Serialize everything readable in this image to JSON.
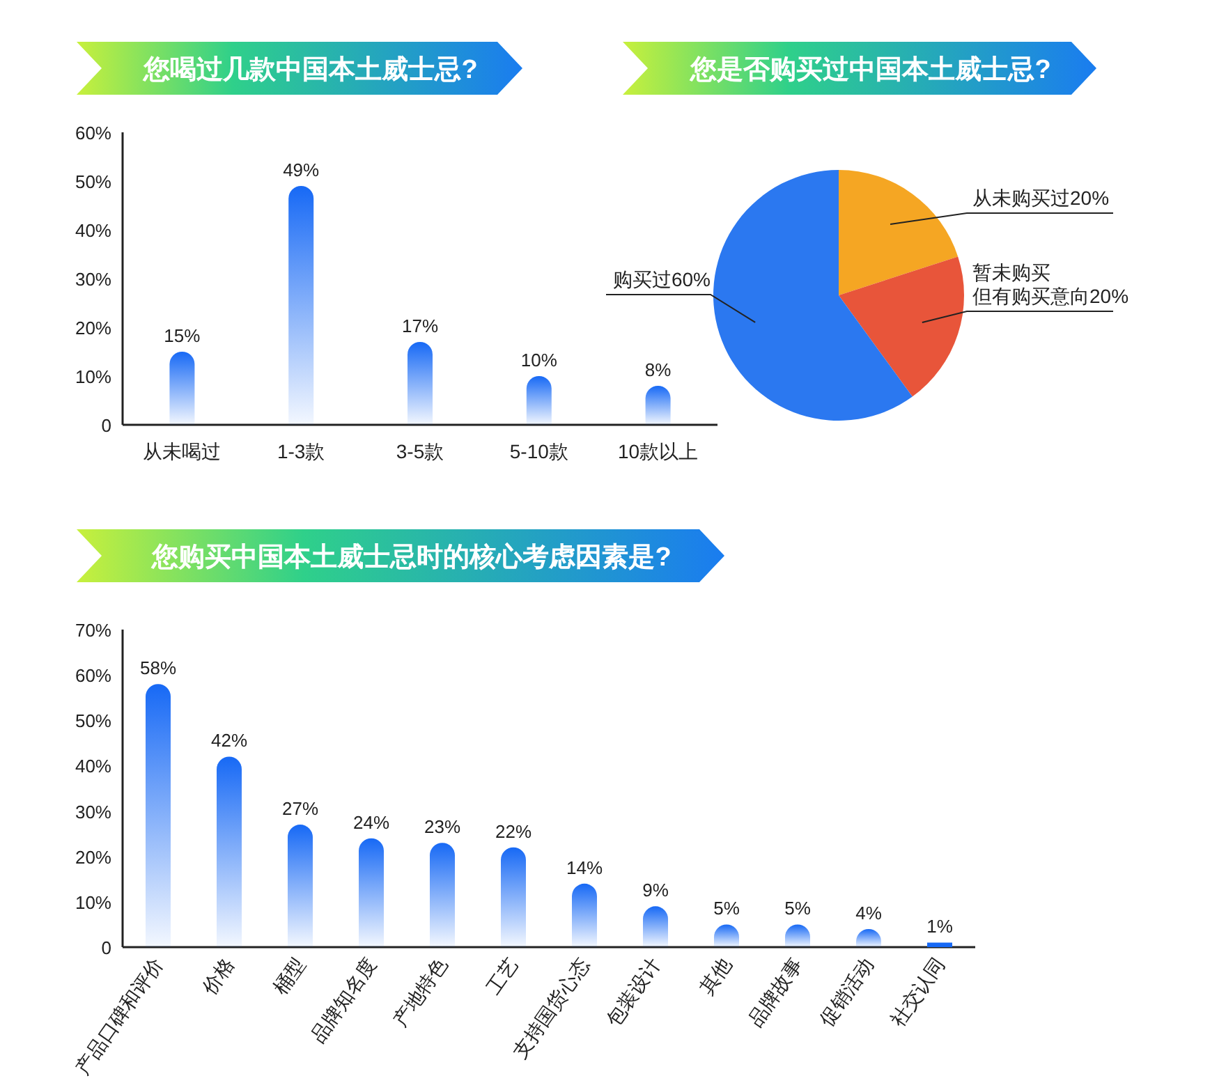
{
  "chart_data": [
    {
      "type": "bar",
      "title": "您喝过几款中国本土威士忌?",
      "categories": [
        "从未喝过",
        "1-3款",
        "3-5款",
        "5-10款",
        "10款以上"
      ],
      "values": [
        15,
        49,
        17,
        10,
        8
      ],
      "value_labels": [
        "15%",
        "49%",
        "17%",
        "10%",
        "8%"
      ],
      "color": "#1769f5",
      "ylim": [
        0,
        60
      ],
      "yticks": [
        0,
        {
          "value": 10,
          "label": "10%"
        },
        {
          "value": 20,
          "label": "20%"
        },
        {
          "value": 30,
          "label": "30%"
        },
        {
          "value": 40,
          "label": "40%"
        },
        {
          "value": 50,
          "label": "50%"
        },
        {
          "value": 60,
          "label": "60%"
        }
      ]
    },
    {
      "type": "pie",
      "title": "您是否购买过中国本土威士忌?",
      "categories": [
        "从未购买过",
        "暂未购买但有购买意向",
        "购买过"
      ],
      "values": [
        20,
        20,
        60
      ],
      "value_labels": [
        "20%",
        "20%",
        "60%"
      ],
      "colors": [
        "#f5a623",
        "#e8553a",
        "#2b78f0"
      ]
    },
    {
      "type": "bar",
      "title": "您购买中国本土威士忌时的核心考虑因素是?",
      "categories": [
        "产品口碑和评价",
        "价格",
        "桶型",
        "品牌知名度",
        "产地特色",
        "工艺",
        "支持国货心态",
        "包装设计",
        "其他",
        "品牌故事",
        "促销活动",
        "社交认同"
      ],
      "values": [
        58,
        42,
        27,
        24,
        23,
        22,
        14,
        9,
        5,
        5,
        4,
        1
      ],
      "value_labels": [
        "58%",
        "42%",
        "27%",
        "24%",
        "23%",
        "22%",
        "14%",
        "9%",
        "5%",
        "5%",
        "4%",
        "1%"
      ],
      "color": "#1769f5",
      "ylim": [
        0,
        70
      ],
      "yticks": [
        0,
        {
          "value": 10,
          "label": "10%"
        },
        {
          "value": 20,
          "label": "20%"
        },
        {
          "value": 30,
          "label": "30%"
        },
        {
          "value": 40,
          "label": "40%"
        },
        {
          "value": 50,
          "label": "50%"
        },
        {
          "value": 60,
          "label": "60%"
        },
        {
          "value": 70,
          "label": "70%"
        }
      ]
    }
  ]
}
